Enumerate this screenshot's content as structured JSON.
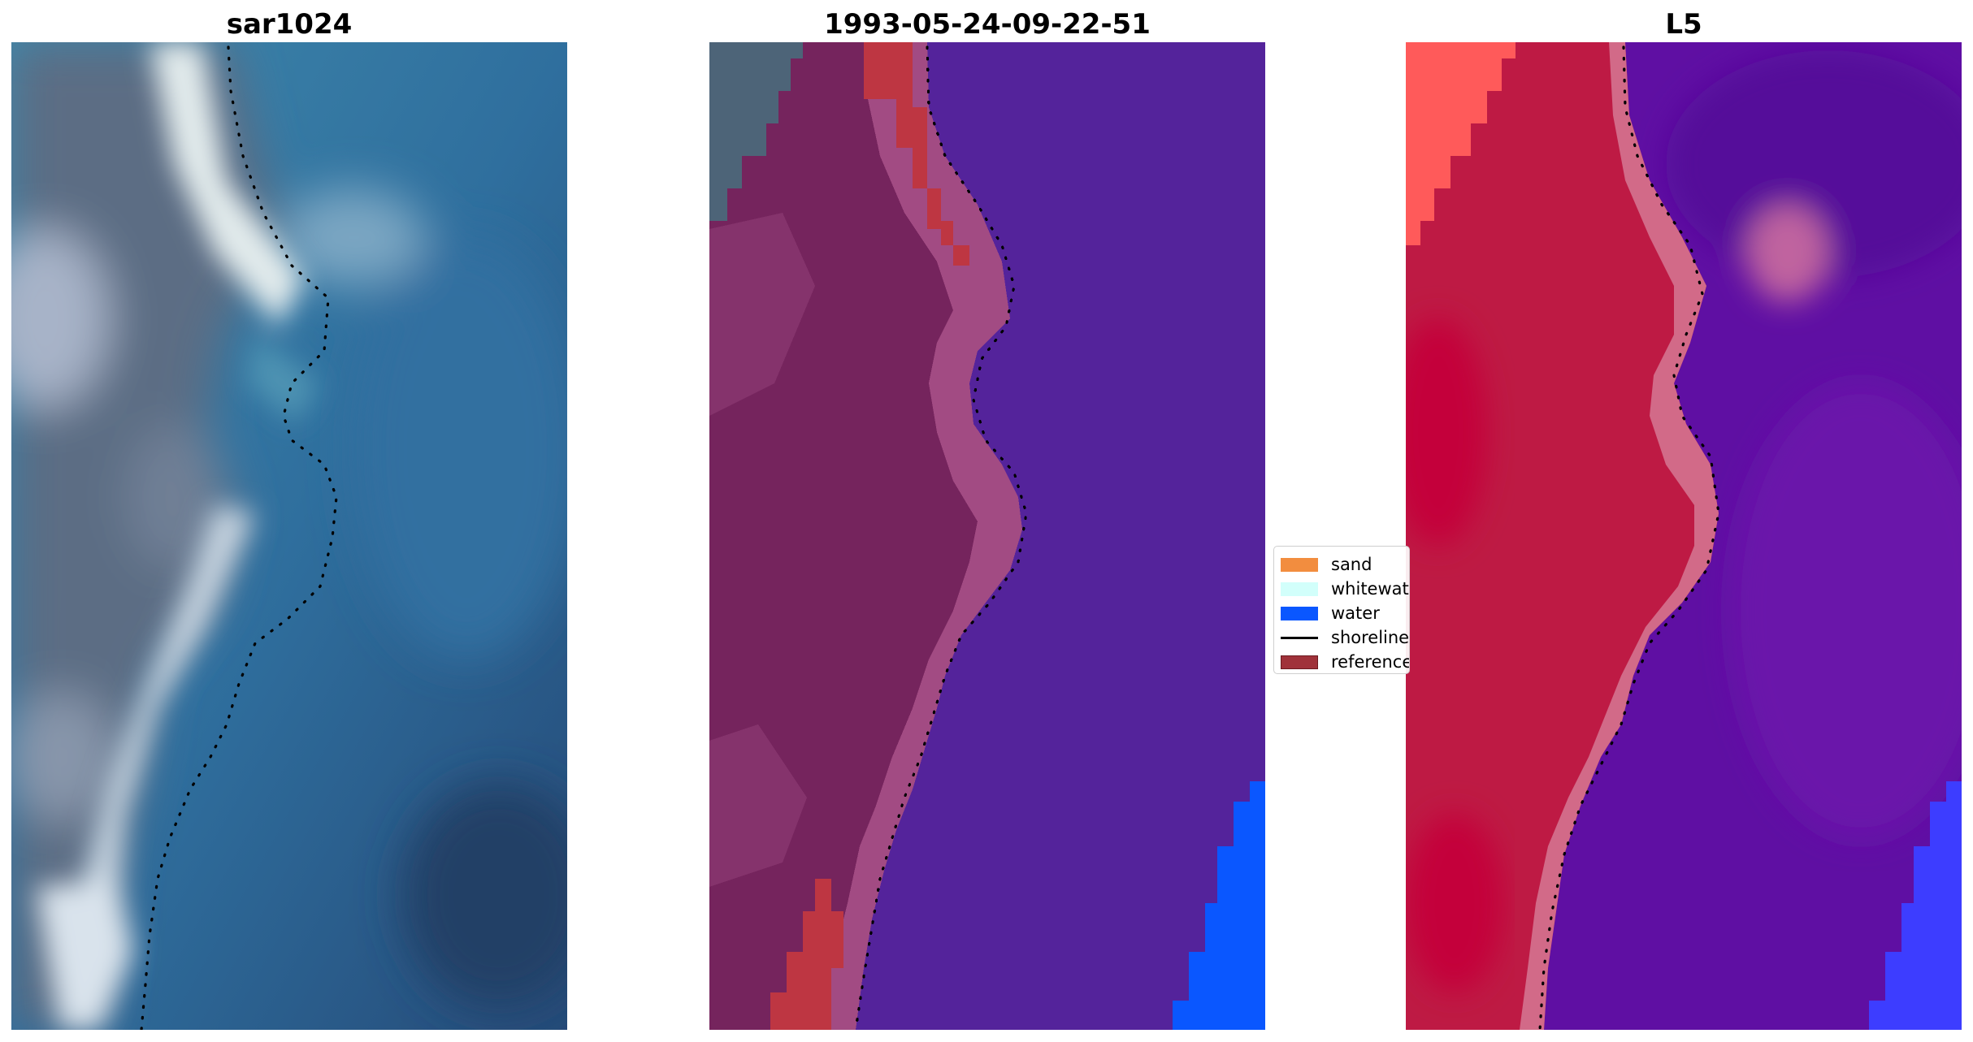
{
  "panels": [
    {
      "title": "sar1024",
      "image": "rgb satellite image of coastline"
    },
    {
      "title": "1993-05-24-09-22-51",
      "image": "classified image overlay"
    },
    {
      "title": "L5",
      "image": "false colour band composite"
    }
  ],
  "legend": {
    "items": [
      {
        "label": "sand",
        "color": "#f28d3f",
        "kind": "patch"
      },
      {
        "label": "whitewater",
        "color": "#d2fffb",
        "kind": "patch"
      },
      {
        "label": "water",
        "color": "#0a57ff",
        "kind": "patch"
      },
      {
        "label": "shoreline",
        "color": "#000000",
        "kind": "line"
      },
      {
        "label": "reference",
        "color": "#a0323a",
        "kind": "patch"
      }
    ]
  },
  "colors": {
    "rgb_water": "#2e6b9a",
    "rgb_land": "#5a6e85",
    "rgb_whitewater": "#dde8ec",
    "class_land": "#75245d",
    "class_land_edge": "#a24b83",
    "class_water": "#54239b",
    "class_water_blue": "#0a57ff",
    "class_reference": "#be3642",
    "class_topleft": "#4d6478",
    "l5_land": "#be1a44",
    "l5_edge": "#d26a88",
    "l5_water": "#5f0fa3",
    "l5_topleft": "#ff5a5a",
    "l5_blue": "#3d3dff"
  }
}
